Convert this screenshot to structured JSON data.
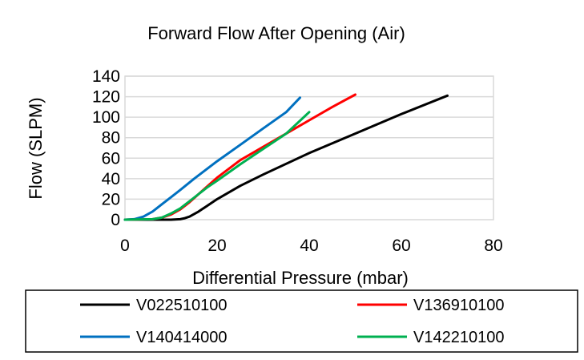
{
  "chart_data": {
    "type": "line",
    "title": "Forward Flow After Opening (Air)",
    "xlabel": "Differential Pressure (mbar)",
    "ylabel": "Flow (SLPM)",
    "xlim": [
      0,
      80
    ],
    "ylim": [
      0,
      140
    ],
    "x_ticks": [
      "0",
      "20",
      "40",
      "60",
      "80"
    ],
    "y_ticks": [
      "0",
      "20",
      "40",
      "60",
      "80",
      "100",
      "120",
      "140"
    ],
    "grid": "horizontal",
    "legend_position": "bottom",
    "series": [
      {
        "name": "V022510100",
        "color": "#000000",
        "points": [
          [
            0,
            0
          ],
          [
            10,
            0
          ],
          [
            12,
            0.5
          ],
          [
            13,
            1.5
          ],
          [
            14,
            3
          ],
          [
            16,
            8
          ],
          [
            18,
            14
          ],
          [
            20,
            20
          ],
          [
            25,
            33
          ],
          [
            30,
            44
          ],
          [
            40,
            65
          ],
          [
            50,
            84
          ],
          [
            60,
            103
          ],
          [
            70,
            121
          ]
        ]
      },
      {
        "name": "V136910100",
        "color": "#ff0000",
        "points": [
          [
            0,
            0
          ],
          [
            6,
            0.5
          ],
          [
            8,
            2
          ],
          [
            10,
            5
          ],
          [
            12,
            10
          ],
          [
            14,
            17
          ],
          [
            16,
            25
          ],
          [
            18,
            33
          ],
          [
            20,
            41
          ],
          [
            25,
            58
          ],
          [
            30,
            71
          ],
          [
            35,
            84
          ],
          [
            40,
            97
          ],
          [
            45,
            110
          ],
          [
            50,
            122
          ]
        ]
      },
      {
        "name": "V140414000",
        "color": "#0070c0",
        "points": [
          [
            0,
            0
          ],
          [
            2,
            0.5
          ],
          [
            4,
            3
          ],
          [
            6,
            8
          ],
          [
            8,
            15
          ],
          [
            10,
            22
          ],
          [
            12,
            29
          ],
          [
            15,
            40
          ],
          [
            20,
            57
          ],
          [
            25,
            73
          ],
          [
            30,
            89
          ],
          [
            35,
            105
          ],
          [
            38,
            119
          ]
        ]
      },
      {
        "name": "V142210100",
        "color": "#00b050",
        "points": [
          [
            0,
            0
          ],
          [
            6,
            0.5
          ],
          [
            8,
            2
          ],
          [
            10,
            6
          ],
          [
            12,
            11
          ],
          [
            14,
            18
          ],
          [
            16,
            25
          ],
          [
            18,
            32
          ],
          [
            20,
            38
          ],
          [
            25,
            54
          ],
          [
            30,
            69
          ],
          [
            35,
            84
          ],
          [
            40,
            105
          ]
        ]
      }
    ]
  }
}
